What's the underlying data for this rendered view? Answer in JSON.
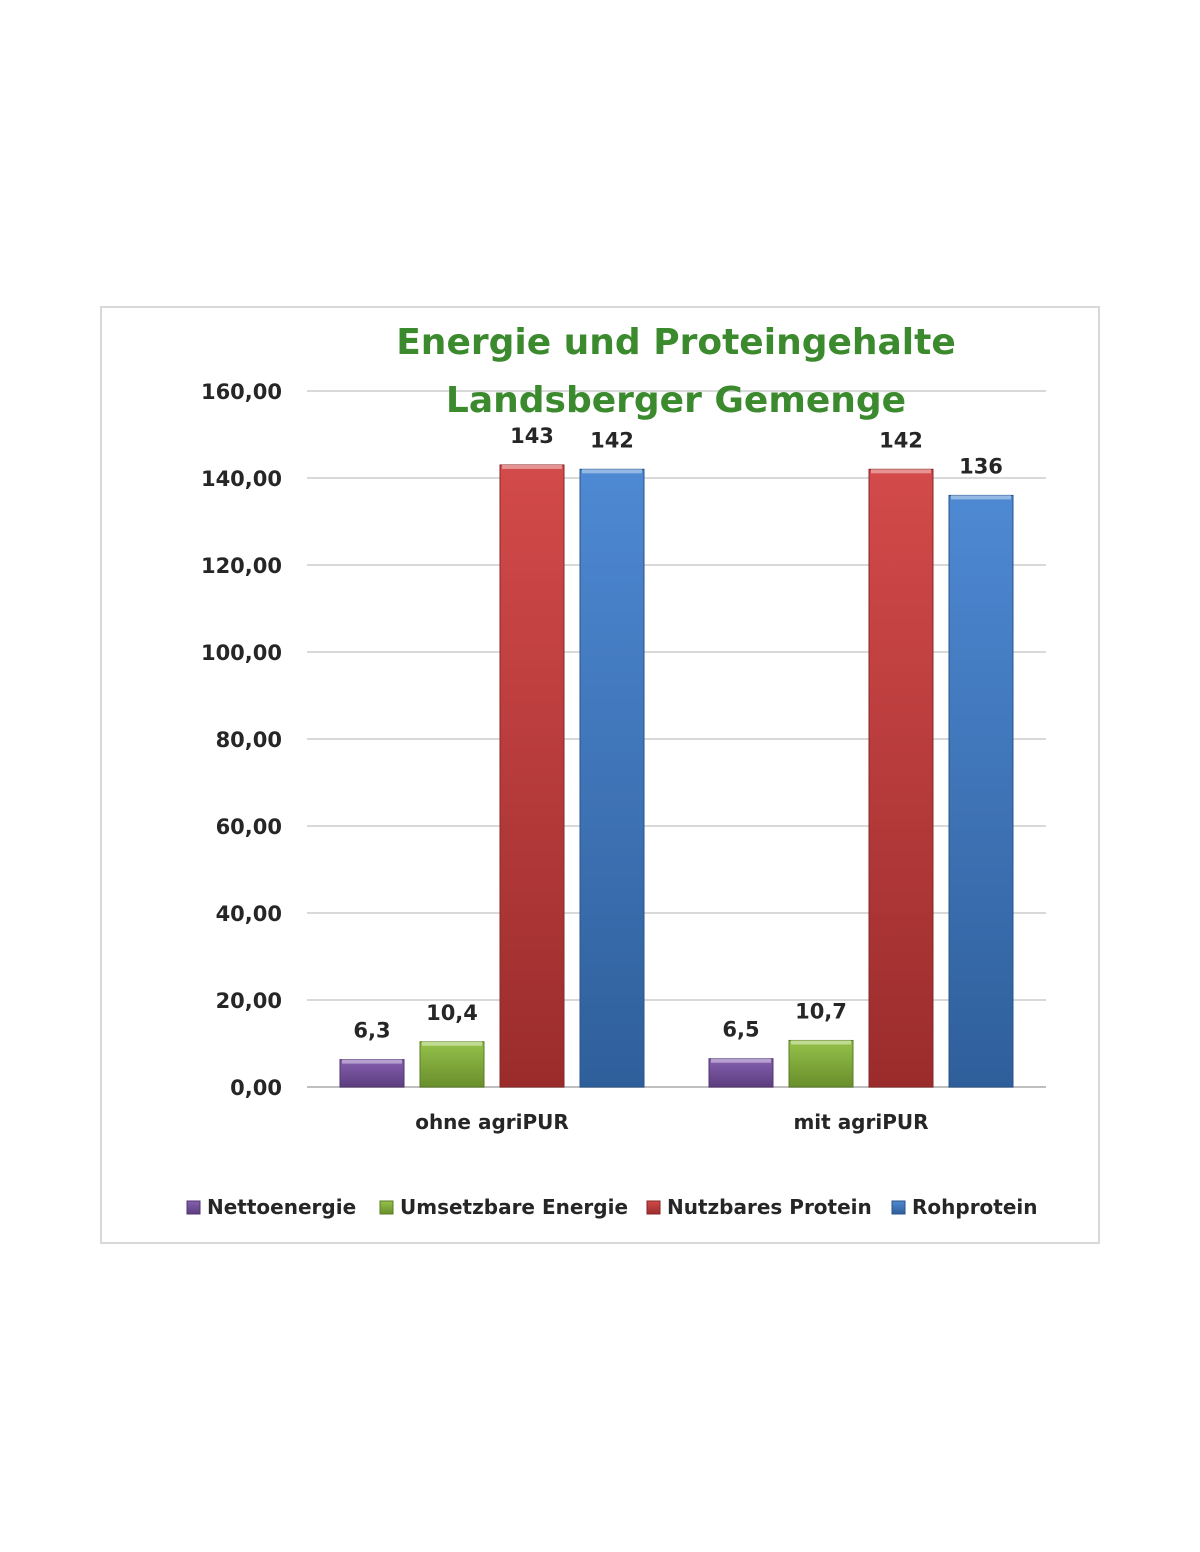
{
  "chart_data": {
    "type": "bar",
    "title": [
      "Energie und Proteingehalte",
      "Landsberger Gemenge"
    ],
    "title_color": "#3c8a2e",
    "categories": [
      "ohne agriPUR",
      "mit agriPUR"
    ],
    "series": [
      {
        "name": "Nettoenergie",
        "values": [
          6.3,
          6.5
        ],
        "labels": [
          "6,3",
          "6,5"
        ],
        "color": "#7b52a8"
      },
      {
        "name": "Umsetzbare Energie",
        "values": [
          10.4,
          10.7
        ],
        "labels": [
          "10,4",
          "10,7"
        ],
        "color": "#8cbd3a"
      },
      {
        "name": "Nutzbares Protein",
        "values": [
          143,
          142
        ],
        "labels": [
          "143",
          "142"
        ],
        "color": "#cf3a3a"
      },
      {
        "name": "Rohprotein",
        "values": [
          142,
          136
        ],
        "labels": [
          "142",
          "136"
        ],
        "color": "#3f7fcf"
      }
    ],
    "ylim": [
      0,
      160
    ],
    "yticks": [
      0,
      20,
      40,
      60,
      80,
      100,
      120,
      140,
      160
    ],
    "ytick_labels": [
      "0,00",
      "20,00",
      "40,00",
      "60,00",
      "80,00",
      "100,00",
      "120,00",
      "140,00",
      "160,00"
    ],
    "grid": true,
    "legend_position": "bottom",
    "xlabel": "",
    "ylabel": ""
  }
}
